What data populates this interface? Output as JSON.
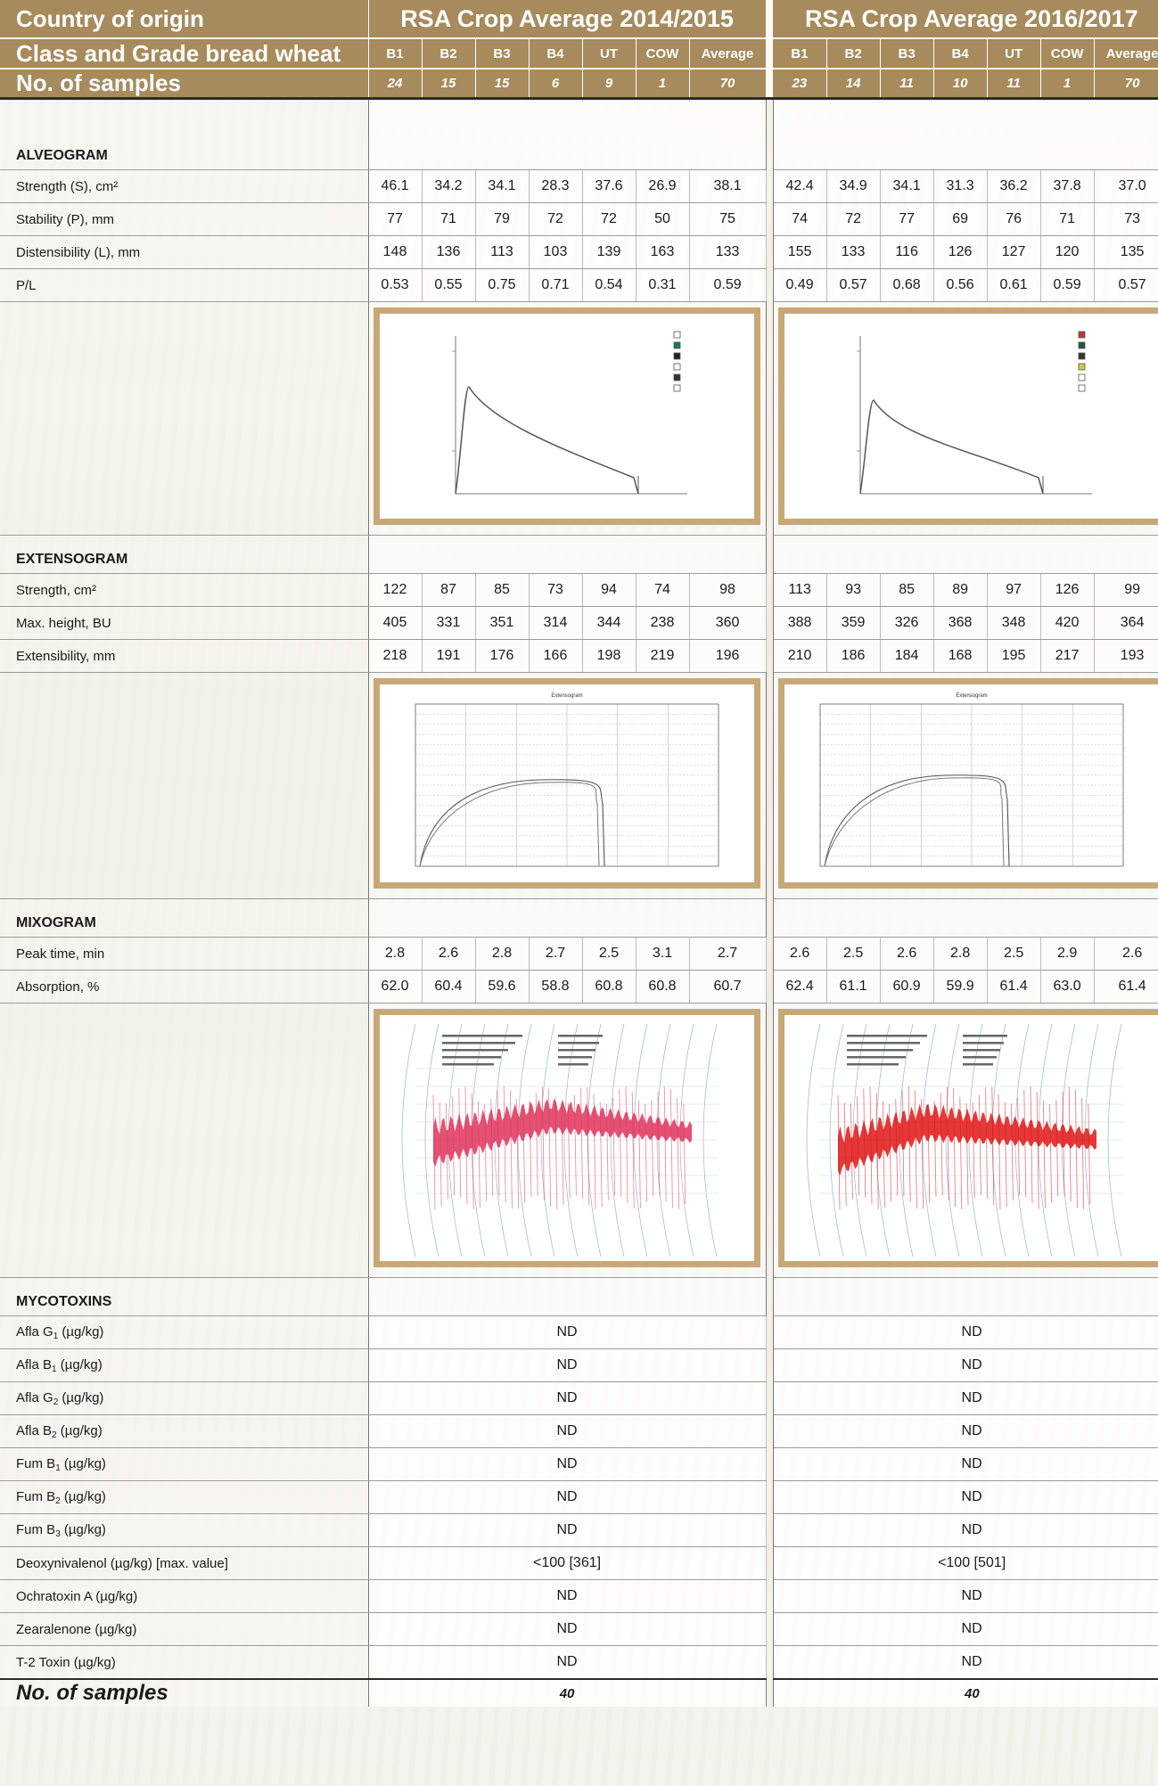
{
  "header": {
    "country_label": "Country of origin",
    "class_label": "Class and Grade bread wheat",
    "samples_label": "No. of samples",
    "period_a": "RSA Crop Average 2014/2015",
    "period_b": "RSA Crop Average 2016/2017",
    "grades": [
      "B1",
      "B2",
      "B3",
      "B4",
      "UT",
      "COW",
      "Average"
    ],
    "samples_a": [
      "24",
      "15",
      "15",
      "6",
      "9",
      "1",
      "70"
    ],
    "samples_b": [
      "23",
      "14",
      "11",
      "10",
      "11",
      "1",
      "70"
    ]
  },
  "sections": {
    "alveogram": "ALVEOGRAM",
    "extensogram": "EXTENSOGRAM",
    "mixogram": "MIXOGRAM",
    "mycotoxins": "MYCOTOXINS"
  },
  "alveogram": [
    {
      "label": "Strength (S), cm²",
      "a": [
        "46.1",
        "34.2",
        "34.1",
        "28.3",
        "37.6",
        "26.9",
        "38.1"
      ],
      "b": [
        "42.4",
        "34.9",
        "34.1",
        "31.3",
        "36.2",
        "37.8",
        "37.0"
      ]
    },
    {
      "label": "Stability (P), mm",
      "a": [
        "77",
        "71",
        "79",
        "72",
        "72",
        "50",
        "75"
      ],
      "b": [
        "74",
        "72",
        "77",
        "69",
        "76",
        "71",
        "73"
      ]
    },
    {
      "label": "Distensibility (L), mm",
      "a": [
        "148",
        "136",
        "113",
        "103",
        "139",
        "163",
        "133"
      ],
      "b": [
        "155",
        "133",
        "116",
        "126",
        "127",
        "120",
        "135"
      ]
    },
    {
      "label": "P/L",
      "a": [
        "0.53",
        "0.55",
        "0.75",
        "0.71",
        "0.54",
        "0.31",
        "0.59"
      ],
      "b": [
        "0.49",
        "0.57",
        "0.68",
        "0.56",
        "0.61",
        "0.59",
        "0.57"
      ]
    }
  ],
  "extensogram": [
    {
      "label": "Strength, cm²",
      "a": [
        "122",
        "87",
        "85",
        "73",
        "94",
        "74",
        "98"
      ],
      "b": [
        "113",
        "93",
        "85",
        "89",
        "97",
        "126",
        "99"
      ]
    },
    {
      "label": "Max. height, BU",
      "a": [
        "405",
        "331",
        "351",
        "314",
        "344",
        "238",
        "360"
      ],
      "b": [
        "388",
        "359",
        "326",
        "368",
        "348",
        "420",
        "364"
      ]
    },
    {
      "label": "Extensibility, mm",
      "a": [
        "218",
        "191",
        "176",
        "166",
        "198",
        "219",
        "196"
      ],
      "b": [
        "210",
        "186",
        "184",
        "168",
        "195",
        "217",
        "193"
      ]
    }
  ],
  "mixogram": [
    {
      "label": "Peak time, min",
      "a": [
        "2.8",
        "2.6",
        "2.8",
        "2.7",
        "2.5",
        "3.1",
        "2.7"
      ],
      "b": [
        "2.6",
        "2.5",
        "2.6",
        "2.8",
        "2.5",
        "2.9",
        "2.6"
      ]
    },
    {
      "label": "Absorption, %",
      "a": [
        "62.0",
        "60.4",
        "59.6",
        "58.8",
        "60.8",
        "60.8",
        "60.7"
      ],
      "b": [
        "62.4",
        "61.1",
        "60.9",
        "59.9",
        "61.4",
        "63.0",
        "61.4"
      ]
    }
  ],
  "mycotoxins": [
    {
      "name": "Afla G",
      "sub": "1",
      "unit": " (µg/kg)",
      "a": "ND",
      "b": "ND"
    },
    {
      "name": "Afla B",
      "sub": "1",
      "unit": " (µg/kg)",
      "a": "ND",
      "b": "ND"
    },
    {
      "name": "Afla G",
      "sub": "2",
      "unit": " (µg/kg)",
      "a": "ND",
      "b": "ND"
    },
    {
      "name": "Afla B",
      "sub": "2",
      "unit": " (µg/kg)",
      "a": "ND",
      "b": "ND"
    },
    {
      "name": "Fum B",
      "sub": "1",
      "unit": " (µg/kg)",
      "a": "ND",
      "b": "ND"
    },
    {
      "name": "Fum B",
      "sub": "2",
      "unit": " (µg/kg)",
      "a": "ND",
      "b": "ND"
    },
    {
      "name": "Fum B",
      "sub": "3",
      "unit": " (µg/kg)",
      "a": "ND",
      "b": "ND"
    },
    {
      "name": "Deoxynivalenol (µg/kg) [max. value]",
      "sub": "",
      "unit": "",
      "a": "<100 [361]",
      "b": "<100 [501]"
    },
    {
      "name": "Ochratoxin A (µg/kg)",
      "sub": "",
      "unit": "",
      "a": "ND",
      "b": "ND"
    },
    {
      "name": "Zearalenone (µg/kg)",
      "sub": "",
      "unit": "",
      "a": "ND",
      "b": "ND"
    },
    {
      "name": "T-2 Toxin (µg/kg)",
      "sub": "",
      "unit": "",
      "a": "ND",
      "b": "ND"
    }
  ],
  "footer": {
    "label": "No. of samples",
    "a": "40",
    "b": "40"
  },
  "images": {
    "extensogram_title": "Extensogram",
    "frame_color": "#c7a877",
    "header_color": "#a78b5c",
    "mixo_color_a": "#e0335a",
    "mixo_color_b": "#e01515"
  }
}
